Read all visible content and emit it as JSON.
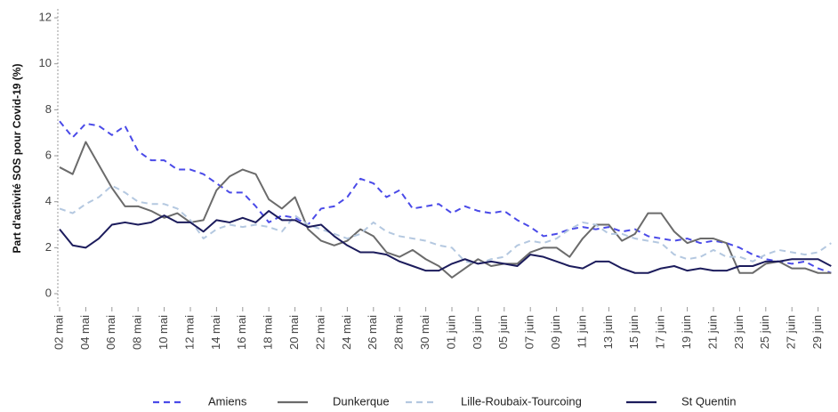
{
  "chart_data": {
    "type": "line",
    "y_label": "Part d'activité SOS pour Covid-19 (%)",
    "categories": [
      "02 mai",
      null,
      "04 mai",
      null,
      "06 mai",
      null,
      "08 mai",
      null,
      "10 mai",
      null,
      "12 mai",
      null,
      "14 mai",
      null,
      "16 mai",
      null,
      "18 mai",
      null,
      "20 mai",
      null,
      "22 mai",
      null,
      "24 mai",
      null,
      "26 mai",
      null,
      "28 mai",
      null,
      "30 mai",
      null,
      "01 juin",
      null,
      "03 juin",
      null,
      "05 juin",
      null,
      "07 juin",
      null,
      "09 juin",
      null,
      "11 juin",
      null,
      "13 juin",
      null,
      "15 juin",
      null,
      "17 juin",
      null,
      "19 juin",
      null,
      "21 juin",
      null,
      "23 juin",
      null,
      "25 juin",
      null,
      "27 juin",
      null,
      "29 juin",
      null
    ],
    "series": [
      {
        "name": "Amiens",
        "color": "#4a4ae8",
        "dashed": true,
        "values": [
          7.5,
          6.8,
          7.4,
          7.3,
          6.9,
          7.3,
          6.2,
          5.8,
          5.8,
          5.4,
          5.4,
          5.2,
          4.8,
          4.4,
          4.4,
          3.8,
          3.1,
          3.4,
          3.3,
          3.0,
          3.7,
          3.8,
          4.2,
          5.0,
          4.8,
          4.2,
          4.5,
          3.7,
          3.8,
          3.9,
          3.5,
          3.8,
          3.6,
          3.5,
          3.6,
          3.2,
          2.9,
          2.5,
          2.6,
          2.8,
          2.9,
          2.8,
          2.9,
          2.7,
          2.8,
          2.5,
          2.4,
          2.3,
          2.4,
          2.2,
          2.3,
          2.2,
          2.0,
          1.7,
          1.5,
          1.4,
          1.3,
          1.4,
          1.1,
          0.9
        ]
      },
      {
        "name": "Dunkerque",
        "color": "#6b6b6b",
        "dashed": false,
        "values": [
          5.5,
          5.2,
          6.6,
          5.6,
          4.6,
          3.8,
          3.8,
          3.6,
          3.3,
          3.5,
          3.1,
          3.2,
          4.5,
          5.1,
          5.4,
          5.2,
          4.1,
          3.7,
          4.2,
          2.8,
          2.3,
          2.1,
          2.3,
          2.8,
          2.5,
          1.8,
          1.6,
          1.9,
          1.5,
          1.2,
          0.7,
          1.1,
          1.5,
          1.2,
          1.3,
          1.3,
          1.8,
          2.0,
          2.0,
          1.6,
          2.4,
          3.0,
          3.0,
          2.3,
          2.6,
          3.5,
          3.5,
          2.7,
          2.2,
          2.4,
          2.4,
          2.2,
          0.9,
          0.9,
          1.3,
          1.4,
          1.1,
          1.1,
          0.9,
          0.9
        ]
      },
      {
        "name": "Lille-Roubaix-Tourcoing",
        "color": "#b4c8e0",
        "dashed": true,
        "values": [
          3.7,
          3.5,
          3.9,
          4.2,
          4.7,
          4.4,
          4.0,
          3.9,
          3.9,
          3.7,
          3.2,
          2.4,
          2.8,
          3.0,
          2.9,
          3.0,
          2.9,
          2.7,
          3.4,
          3.0,
          2.8,
          2.6,
          2.4,
          2.6,
          3.1,
          2.7,
          2.5,
          2.4,
          2.3,
          2.1,
          2.0,
          1.4,
          1.3,
          1.5,
          1.6,
          2.1,
          2.3,
          2.2,
          2.4,
          2.8,
          3.1,
          3.0,
          2.6,
          2.6,
          2.4,
          2.3,
          2.2,
          1.7,
          1.5,
          1.6,
          1.9,
          1.6,
          1.6,
          1.4,
          1.7,
          1.9,
          1.8,
          1.7,
          1.8,
          2.2
        ]
      },
      {
        "name": "St Quentin",
        "color": "#1c1c5c",
        "dashed": false,
        "values": [
          2.8,
          2.1,
          2.0,
          2.4,
          3.0,
          3.1,
          3.0,
          3.1,
          3.4,
          3.1,
          3.1,
          2.7,
          3.2,
          3.1,
          3.3,
          3.1,
          3.6,
          3.2,
          3.2,
          2.9,
          3.0,
          2.5,
          2.1,
          1.8,
          1.8,
          1.7,
          1.4,
          1.2,
          1.0,
          1.0,
          1.3,
          1.5,
          1.3,
          1.4,
          1.3,
          1.2,
          1.7,
          1.6,
          1.4,
          1.2,
          1.1,
          1.4,
          1.4,
          1.1,
          0.9,
          0.9,
          1.1,
          1.2,
          1.0,
          1.1,
          1.0,
          1.0,
          1.2,
          1.2,
          1.4,
          1.4,
          1.5,
          1.5,
          1.5,
          1.2
        ]
      }
    ],
    "ylim": [
      -0.6,
      12.4
    ],
    "yticks": [
      0,
      2,
      4,
      6,
      8,
      10,
      12
    ],
    "grid": false
  }
}
